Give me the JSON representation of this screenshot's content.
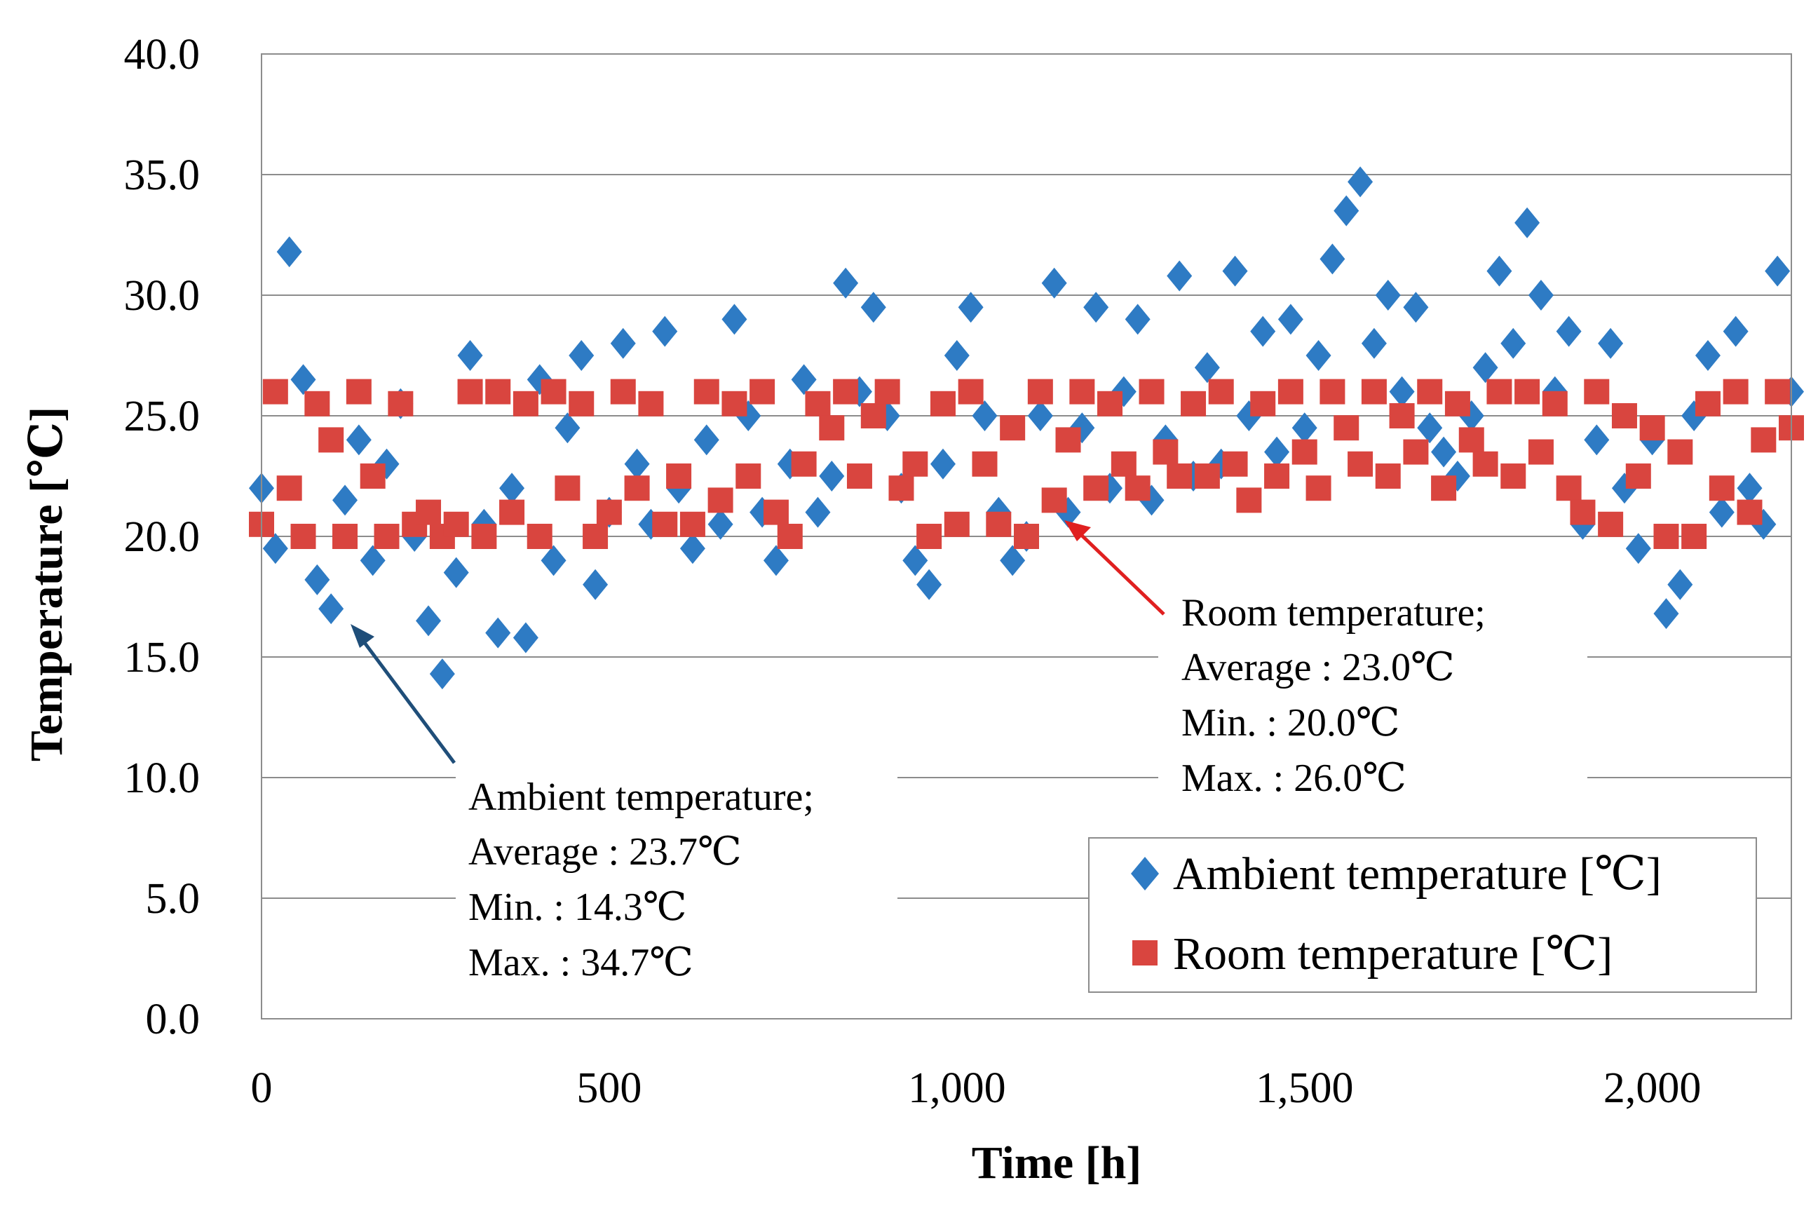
{
  "chart_data": {
    "type": "scatter",
    "title": "",
    "xlabel": "Time [h]",
    "ylabel": "Temperature [℃]",
    "xlim": [
      0,
      2200
    ],
    "ylim": [
      0,
      40
    ],
    "xticks": [
      0,
      500,
      1000,
      1500,
      2000
    ],
    "xtick_labels": [
      "0",
      "500",
      "1,000",
      "1,500",
      "2,000"
    ],
    "yticks": [
      0,
      5,
      10,
      15,
      20,
      25,
      30,
      35,
      40
    ],
    "ytick_labels": [
      "0.0",
      "5.0",
      "10.0",
      "15.0",
      "20.0",
      "25.0",
      "30.0",
      "35.0",
      "40.0"
    ],
    "grid": true,
    "legend_position": "bottom-right",
    "series": [
      {
        "name": "Ambient temperature [℃]",
        "marker": "diamond",
        "color": "#2E7BC4",
        "x": [
          0,
          20,
          40,
          60,
          80,
          100,
          120,
          140,
          160,
          180,
          200,
          220,
          240,
          260,
          280,
          300,
          320,
          340,
          360,
          380,
          400,
          420,
          440,
          460,
          480,
          500,
          520,
          540,
          560,
          580,
          600,
          620,
          640,
          660,
          680,
          700,
          720,
          740,
          760,
          780,
          800,
          820,
          840,
          860,
          880,
          900,
          920,
          940,
          960,
          980,
          1000,
          1020,
          1040,
          1060,
          1080,
          1100,
          1120,
          1140,
          1160,
          1180,
          1200,
          1220,
          1240,
          1260,
          1280,
          1300,
          1320,
          1340,
          1360,
          1380,
          1400,
          1420,
          1440,
          1460,
          1480,
          1500,
          1520,
          1540,
          1560,
          1580,
          1600,
          1620,
          1640,
          1660,
          1680,
          1700,
          1720,
          1740,
          1760,
          1780,
          1800,
          1820,
          1840,
          1860,
          1880,
          1900,
          1920,
          1940,
          1960,
          1980,
          2000,
          2020,
          2040,
          2060,
          2080,
          2100,
          2120,
          2140,
          2160,
          2180,
          2200
        ],
        "y": [
          22.0,
          19.5,
          31.8,
          26.5,
          18.2,
          17.0,
          21.5,
          24.0,
          19.0,
          23.0,
          25.5,
          20.0,
          16.5,
          14.3,
          18.5,
          27.5,
          20.5,
          16.0,
          22.0,
          15.8,
          26.5,
          19.0,
          24.5,
          27.5,
          18.0,
          21.0,
          28.0,
          23.0,
          20.5,
          28.5,
          22.0,
          19.5,
          24.0,
          20.5,
          29.0,
          25.0,
          21.0,
          19.0,
          23.0,
          26.5,
          21.0,
          22.5,
          30.5,
          26.0,
          29.5,
          25.0,
          22.0,
          19.0,
          18.0,
          23.0,
          27.5,
          29.5,
          25.0,
          21.0,
          19.0,
          20.0,
          25.0,
          30.5,
          21.0,
          24.5,
          29.5,
          22.0,
          26.0,
          29.0,
          21.5,
          24.0,
          30.8,
          22.5,
          27.0,
          23.0,
          31.0,
          25.0,
          28.5,
          23.5,
          29.0,
          24.5,
          27.5,
          31.5,
          33.5,
          34.7,
          28.0,
          30.0,
          26.0,
          29.5,
          24.5,
          23.5,
          22.5,
          25.0,
          27.0,
          31.0,
          28.0,
          33.0,
          30.0,
          26.0,
          28.5,
          20.5,
          24.0,
          28.0,
          22.0,
          19.5,
          24.0,
          16.8,
          18.0,
          25.0,
          27.5,
          21.0,
          28.5,
          22.0,
          20.5,
          31.0,
          26.0
        ]
      },
      {
        "name": "Room temperature [℃]",
        "marker": "square",
        "color": "#D9453F",
        "x": [
          0,
          20,
          40,
          60,
          80,
          100,
          120,
          140,
          160,
          180,
          200,
          220,
          240,
          260,
          280,
          300,
          320,
          340,
          360,
          380,
          400,
          420,
          440,
          460,
          480,
          500,
          520,
          540,
          560,
          580,
          600,
          620,
          640,
          660,
          680,
          700,
          720,
          740,
          760,
          780,
          800,
          820,
          840,
          860,
          880,
          900,
          920,
          940,
          960,
          980,
          1000,
          1020,
          1040,
          1060,
          1080,
          1100,
          1120,
          1140,
          1160,
          1180,
          1200,
          1220,
          1240,
          1260,
          1280,
          1300,
          1320,
          1340,
          1360,
          1380,
          1400,
          1420,
          1440,
          1460,
          1480,
          1500,
          1520,
          1540,
          1560,
          1580,
          1600,
          1620,
          1640,
          1660,
          1680,
          1700,
          1720,
          1740,
          1760,
          1780,
          1800,
          1820,
          1840,
          1860,
          1880,
          1900,
          1920,
          1940,
          1960,
          1980,
          2000,
          2020,
          2040,
          2060,
          2080,
          2100,
          2120,
          2140,
          2160,
          2180,
          2200
        ],
        "y": [
          20.5,
          26.0,
          22.0,
          20.0,
          25.5,
          24.0,
          20.0,
          26.0,
          22.5,
          20.0,
          25.5,
          20.5,
          21.0,
          20.0,
          20.5,
          26.0,
          20.0,
          26.0,
          21.0,
          25.5,
          20.0,
          26.0,
          22.0,
          25.5,
          20.0,
          21.0,
          26.0,
          22.0,
          25.5,
          20.5,
          22.5,
          20.5,
          26.0,
          21.5,
          25.5,
          22.5,
          26.0,
          21.0,
          20.0,
          23.0,
          25.5,
          24.5,
          26.0,
          22.5,
          25.0,
          26.0,
          22.0,
          23.0,
          20.0,
          25.5,
          20.5,
          26.0,
          23.0,
          20.5,
          24.5,
          20.0,
          26.0,
          21.5,
          24.0,
          26.0,
          22.0,
          25.5,
          23.0,
          22.0,
          26.0,
          23.5,
          22.5,
          25.5,
          22.5,
          26.0,
          23.0,
          21.5,
          25.5,
          22.5,
          26.0,
          23.5,
          22.0,
          26.0,
          24.5,
          23.0,
          26.0,
          22.5,
          25.0,
          23.5,
          26.0,
          22.0,
          25.5,
          24.0,
          23.0,
          26.0,
          22.5,
          26.0,
          23.5,
          25.5,
          22.0,
          21.0,
          26.0,
          20.5,
          25.0,
          22.5,
          24.5,
          20.0,
          23.5,
          20.0,
          25.5,
          22.0,
          26.0,
          21.0,
          24.0,
          26.0,
          24.5
        ]
      }
    ],
    "annotations": {
      "ambient": [
        "Ambient  temperature;",
        "Average  :  23.7℃",
        "Min. : 14.3℃",
        "Max.  : 34.7℃"
      ],
      "room": [
        "Room temperature;",
        "Average  : 23.0℃",
        "Min. : 20.0℃",
        "Max. : 26.0℃"
      ]
    }
  }
}
